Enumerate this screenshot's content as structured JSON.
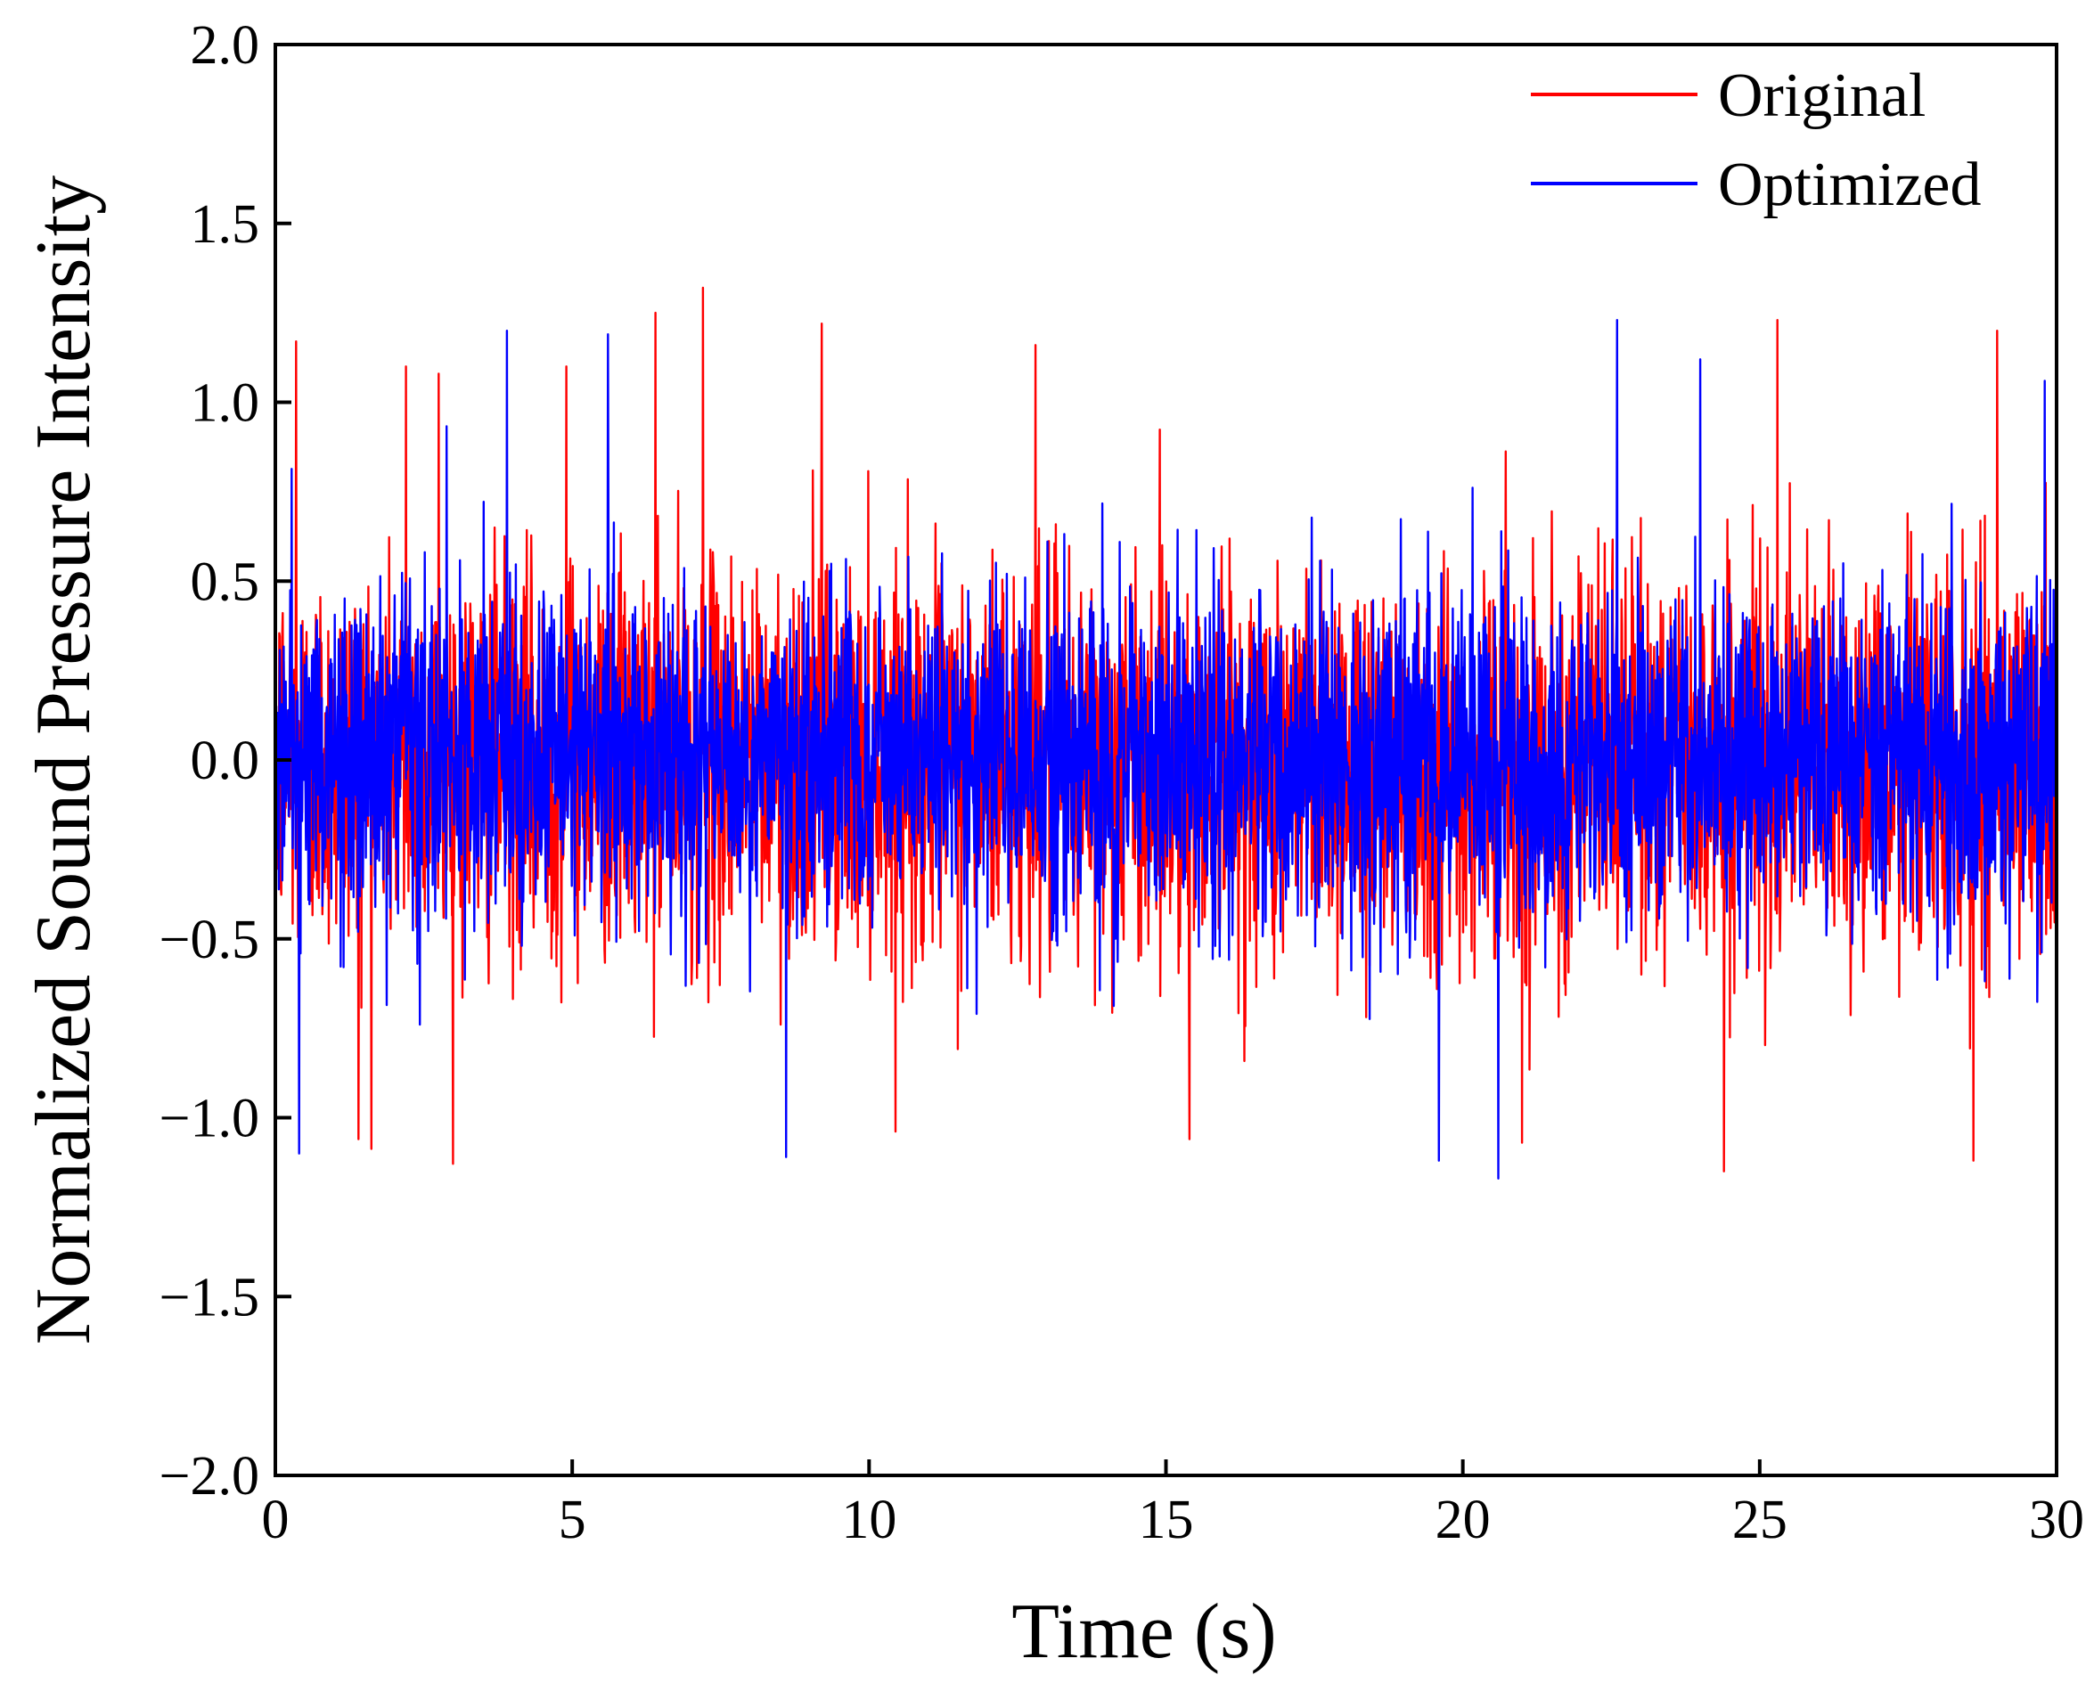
{
  "chart_data": {
    "type": "line",
    "xlabel": "Time (s)",
    "ylabel": "Normalized  Sound Pressure Intensity",
    "xlim": [
      0,
      30
    ],
    "ylim": [
      -2.0,
      2.0
    ],
    "x_ticks": [
      "0",
      "5",
      "10",
      "15",
      "20",
      "25",
      "30"
    ],
    "y_ticks": [
      "2.0",
      "1.5",
      "1.0",
      "0.5",
      "0.0",
      "−0.5",
      "−1.0",
      "−1.5",
      "−2.0"
    ],
    "x_tick_values": [
      0,
      5,
      10,
      15,
      20,
      25,
      30
    ],
    "y_tick_values": [
      2.0,
      1.5,
      1.0,
      0.5,
      0.0,
      -0.5,
      -1.0,
      -1.5,
      -2.0
    ],
    "grid": false,
    "legend_position": "top-right",
    "signal_note": "noise-like signal, amplitudes estimated from peaks",
    "series": [
      {
        "name": "Original",
        "color": "#ff0000",
        "envelope_typical": 0.7,
        "peak_max": 1.32,
        "peak_min": -1.15,
        "peaks": [
          {
            "x": 0.35,
            "y": 1.17
          },
          {
            "x": 1.4,
            "y": -1.06
          },
          {
            "x": 2.2,
            "y": 1.1
          },
          {
            "x": 2.75,
            "y": 1.08
          },
          {
            "x": 4.9,
            "y": 1.1
          },
          {
            "x": 6.4,
            "y": 1.25
          },
          {
            "x": 7.2,
            "y": 1.32
          },
          {
            "x": 9.2,
            "y": 1.22
          },
          {
            "x": 12.8,
            "y": 1.16
          },
          {
            "x": 15.4,
            "y": -1.06
          },
          {
            "x": 21.0,
            "y": -1.07
          },
          {
            "x": 24.4,
            "y": -1.15
          },
          {
            "x": 25.3,
            "y": 1.23
          },
          {
            "x": 28.6,
            "y": -1.12
          },
          {
            "x": 29.0,
            "y": 1.2
          }
        ]
      },
      {
        "name": "Optimized",
        "color": "#0000ff",
        "envelope_typical": 0.6,
        "peak_max": 1.23,
        "peak_min": -1.17,
        "peaks": [
          {
            "x": 0.4,
            "y": -1.1
          },
          {
            "x": 3.9,
            "y": 1.2
          },
          {
            "x": 5.6,
            "y": 1.19
          },
          {
            "x": 8.6,
            "y": -1.11
          },
          {
            "x": 19.6,
            "y": -1.12
          },
          {
            "x": 20.6,
            "y": -1.17
          },
          {
            "x": 22.6,
            "y": 1.23
          },
          {
            "x": 24.0,
            "y": 1.12
          },
          {
            "x": 29.8,
            "y": 1.06
          }
        ]
      }
    ]
  }
}
